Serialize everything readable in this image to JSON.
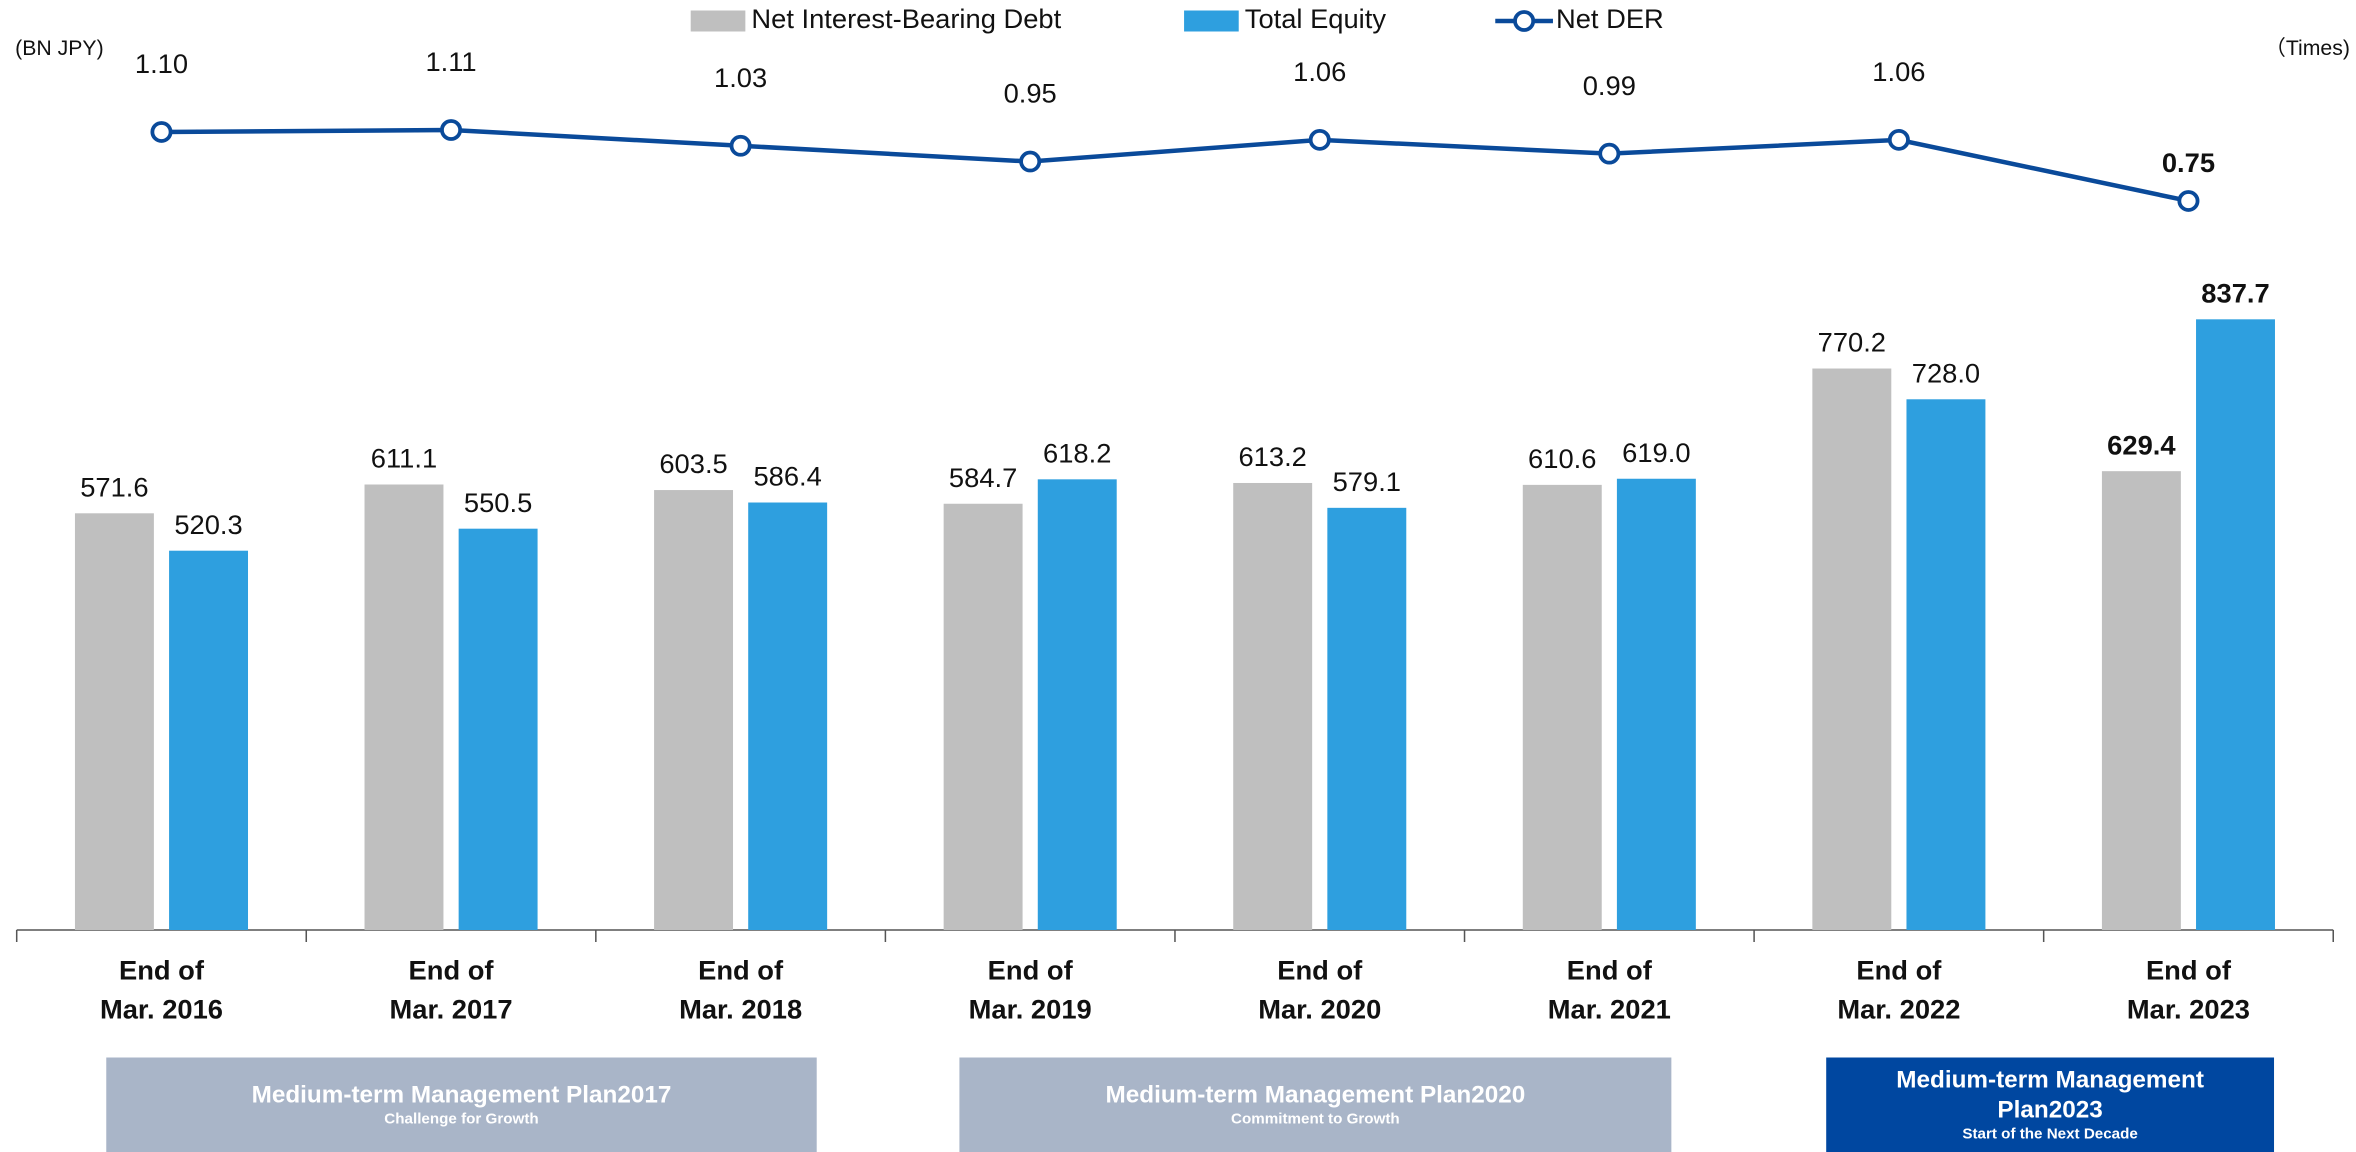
{
  "chart_data": {
    "type": "bar",
    "categories": [
      "End of\nMar. 2016",
      "End of\nMar. 2017",
      "End of\nMar. 2018",
      "End of\nMar. 2019",
      "End of\nMar. 2020",
      "End of\nMar. 2021",
      "End of\nMar. 2022",
      "End of\nMar. 2023"
    ],
    "series": [
      {
        "name": "Net Interest-Bearing Debt",
        "type": "bar",
        "color": "#bfbfbf",
        "values": [
          571.6,
          611.1,
          603.5,
          584.7,
          613.2,
          610.6,
          770.2,
          629.4
        ],
        "value_labels": [
          "571.6",
          "611.1",
          "603.5",
          "584.7",
          "613.2",
          "610.6",
          "770.2",
          "629.4"
        ]
      },
      {
        "name": "Total Equity",
        "type": "bar",
        "color": "#2e9fdf",
        "values": [
          520.3,
          550.5,
          586.4,
          618.2,
          579.1,
          619,
          728,
          837.7
        ],
        "value_labels": [
          "520.3",
          "550.5",
          "586.4",
          "618.2",
          "579.1",
          "619.0",
          "728.0",
          "837.7"
        ]
      },
      {
        "name": "Net DER",
        "type": "line",
        "axis": "y2",
        "color": "#0a4a9a",
        "values": [
          1.1,
          1.11,
          1.03,
          0.95,
          1.06,
          0.99,
          1.06,
          0.75
        ],
        "value_labels": [
          "1.10",
          "1.11",
          "1.03",
          "0.95",
          "1.06",
          "0.99",
          "1.06",
          "0.75"
        ]
      }
    ],
    "ylim": [
      0,
      1000
    ],
    "y2lim": [
      0.4,
      1.5
    ],
    "y_label": "(BN JPY)",
    "y2_label": "（Times)",
    "legend": "top",
    "plans": [
      {
        "title": "Medium-term  Management Plan2017",
        "subtitle": "Challenge for Growth",
        "color": "#a9b5c8"
      },
      {
        "title": "Medium-term  Management Plan2020",
        "subtitle": "Commitment to Growth",
        "color": "#a9b5c8"
      },
      {
        "title": "Medium-term  Management Plan2023",
        "subtitle": "Start of the Next Decade",
        "color": "#0047a0"
      }
    ]
  }
}
